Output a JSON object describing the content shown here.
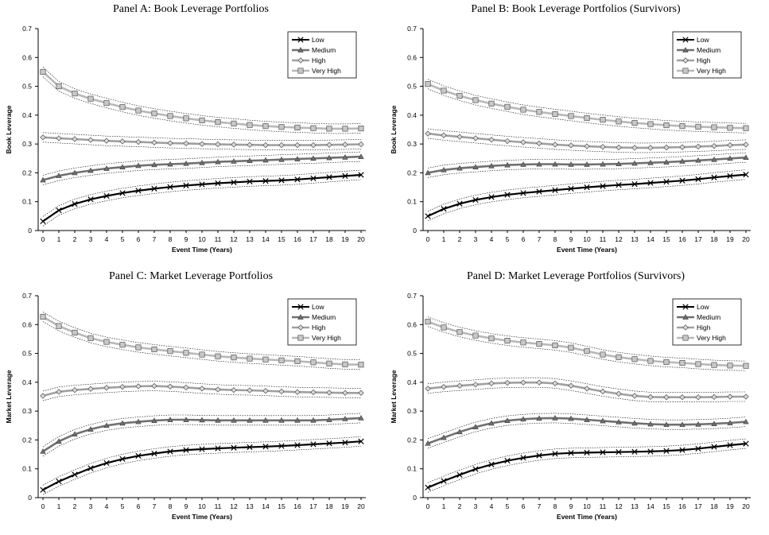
{
  "chart_data": [
    {
      "type": "line",
      "title": "Panel A: Book Leverage Portfolios",
      "xlabel": "Event Time (Years)",
      "ylabel": "Book Leverage",
      "ylim": [
        0,
        0.7
      ],
      "yticks": [
        "0",
        "0.1",
        "0.2",
        "0.3",
        "0.4",
        "0.5",
        "0.6",
        "0.7"
      ],
      "x": [
        0,
        1,
        2,
        3,
        4,
        5,
        6,
        7,
        8,
        9,
        10,
        11,
        12,
        13,
        14,
        15,
        16,
        17,
        18,
        19,
        20
      ],
      "legend_position": "top-right",
      "grid": false,
      "series": [
        {
          "name": "Low",
          "color": "#000000",
          "marker": "x",
          "values": [
            0.032,
            0.07,
            0.092,
            0.108,
            0.12,
            0.13,
            0.138,
            0.145,
            0.151,
            0.156,
            0.16,
            0.164,
            0.167,
            0.17,
            0.172,
            0.174,
            0.177,
            0.181,
            0.185,
            0.189,
            0.193
          ]
        },
        {
          "name": "Medium",
          "color": "#707070",
          "marker": "triangle",
          "values": [
            0.175,
            0.19,
            0.2,
            0.208,
            0.215,
            0.22,
            0.225,
            0.228,
            0.23,
            0.232,
            0.235,
            0.238,
            0.24,
            0.242,
            0.244,
            0.246,
            0.248,
            0.25,
            0.252,
            0.254,
            0.256
          ]
        },
        {
          "name": "High",
          "color": "#a0a0a0",
          "marker": "diamond",
          "values": [
            0.323,
            0.32,
            0.317,
            0.314,
            0.311,
            0.309,
            0.307,
            0.305,
            0.303,
            0.302,
            0.3,
            0.299,
            0.298,
            0.297,
            0.296,
            0.296,
            0.296,
            0.296,
            0.297,
            0.298,
            0.299
          ]
        },
        {
          "name": "Very High",
          "color": "#b8b8b8",
          "marker": "square",
          "values": [
            0.55,
            0.5,
            0.475,
            0.457,
            0.442,
            0.428,
            0.416,
            0.406,
            0.397,
            0.389,
            0.382,
            0.376,
            0.371,
            0.366,
            0.362,
            0.359,
            0.357,
            0.355,
            0.353,
            0.353,
            0.354
          ]
        }
      ]
    },
    {
      "type": "line",
      "title": "Panel B: Book Leverage Portfolios (Survivors)",
      "xlabel": "Event Time (Years)",
      "ylabel": "Book Leverage",
      "ylim": [
        0,
        0.7
      ],
      "yticks": [
        "0",
        "0.1",
        "0.2",
        "0.3",
        "0.4",
        "0.5",
        "0.6",
        "0.7"
      ],
      "x": [
        0,
        1,
        2,
        3,
        4,
        5,
        6,
        7,
        8,
        9,
        10,
        11,
        12,
        13,
        14,
        15,
        16,
        17,
        18,
        19,
        20
      ],
      "legend_position": "top-right",
      "grid": false,
      "series": [
        {
          "name": "Low",
          "color": "#000000",
          "marker": "x",
          "values": [
            0.05,
            0.075,
            0.093,
            0.106,
            0.116,
            0.124,
            0.13,
            0.135,
            0.14,
            0.145,
            0.15,
            0.154,
            0.158,
            0.161,
            0.165,
            0.169,
            0.173,
            0.178,
            0.184,
            0.189,
            0.194
          ]
        },
        {
          "name": "Medium",
          "color": "#707070",
          "marker": "triangle",
          "values": [
            0.2,
            0.21,
            0.216,
            0.22,
            0.224,
            0.227,
            0.229,
            0.23,
            0.23,
            0.229,
            0.229,
            0.23,
            0.231,
            0.233,
            0.235,
            0.237,
            0.24,
            0.243,
            0.246,
            0.25,
            0.253
          ]
        },
        {
          "name": "High",
          "color": "#a0a0a0",
          "marker": "diamond",
          "values": [
            0.336,
            0.33,
            0.325,
            0.32,
            0.315,
            0.31,
            0.306,
            0.302,
            0.298,
            0.295,
            0.292,
            0.29,
            0.288,
            0.287,
            0.287,
            0.288,
            0.289,
            0.291,
            0.293,
            0.296,
            0.298
          ]
        },
        {
          "name": "Very High",
          "color": "#b8b8b8",
          "marker": "square",
          "values": [
            0.508,
            0.485,
            0.467,
            0.452,
            0.44,
            0.429,
            0.419,
            0.411,
            0.404,
            0.397,
            0.39,
            0.384,
            0.378,
            0.373,
            0.369,
            0.365,
            0.362,
            0.36,
            0.358,
            0.356,
            0.355
          ]
        }
      ]
    },
    {
      "type": "line",
      "title": "Panel C: Market Leverage Portfolios",
      "xlabel": "Event Time (Years)",
      "ylabel": "Market Leverage",
      "ylim": [
        0,
        0.7
      ],
      "yticks": [
        "0",
        "0.1",
        "0.2",
        "0.3",
        "0.4",
        "0.5",
        "0.6",
        "0.7"
      ],
      "x": [
        0,
        1,
        2,
        3,
        4,
        5,
        6,
        7,
        8,
        9,
        10,
        11,
        12,
        13,
        14,
        15,
        16,
        17,
        18,
        19,
        20
      ],
      "legend_position": "top-right",
      "grid": false,
      "series": [
        {
          "name": "Low",
          "color": "#000000",
          "marker": "x",
          "values": [
            0.027,
            0.056,
            0.08,
            0.102,
            0.12,
            0.134,
            0.145,
            0.153,
            0.16,
            0.165,
            0.168,
            0.171,
            0.173,
            0.175,
            0.177,
            0.179,
            0.182,
            0.185,
            0.188,
            0.191,
            0.195
          ]
        },
        {
          "name": "Medium",
          "color": "#707070",
          "marker": "triangle",
          "values": [
            0.16,
            0.195,
            0.22,
            0.237,
            0.25,
            0.258,
            0.263,
            0.267,
            0.27,
            0.27,
            0.269,
            0.268,
            0.268,
            0.268,
            0.268,
            0.268,
            0.268,
            0.268,
            0.27,
            0.273,
            0.276
          ]
        },
        {
          "name": "High",
          "color": "#a0a0a0",
          "marker": "diamond",
          "values": [
            0.353,
            0.367,
            0.373,
            0.377,
            0.381,
            0.384,
            0.386,
            0.387,
            0.385,
            0.382,
            0.378,
            0.375,
            0.373,
            0.372,
            0.37,
            0.368,
            0.366,
            0.365,
            0.364,
            0.363,
            0.363
          ]
        },
        {
          "name": "Very High",
          "color": "#b8b8b8",
          "marker": "square",
          "values": [
            0.627,
            0.595,
            0.572,
            0.553,
            0.54,
            0.53,
            0.521,
            0.514,
            0.508,
            0.502,
            0.496,
            0.49,
            0.486,
            0.482,
            0.479,
            0.476,
            0.473,
            0.469,
            0.465,
            0.462,
            0.461
          ]
        }
      ]
    },
    {
      "type": "line",
      "title": "Panel D: Market Leverage Portfolios (Survivors)",
      "xlabel": "Event Time (Years)",
      "ylabel": "Market Leverage",
      "ylim": [
        0,
        0.7
      ],
      "yticks": [
        "0",
        "0.1",
        "0.2",
        "0.3",
        "0.4",
        "0.5",
        "0.6",
        "0.7"
      ],
      "x": [
        0,
        1,
        2,
        3,
        4,
        5,
        6,
        7,
        8,
        9,
        10,
        11,
        12,
        13,
        14,
        15,
        16,
        17,
        18,
        19,
        20
      ],
      "legend_position": "top-right",
      "grid": false,
      "series": [
        {
          "name": "Low",
          "color": "#000000",
          "marker": "x",
          "values": [
            0.035,
            0.058,
            0.079,
            0.099,
            0.115,
            0.128,
            0.138,
            0.146,
            0.152,
            0.155,
            0.156,
            0.157,
            0.158,
            0.159,
            0.16,
            0.162,
            0.165,
            0.17,
            0.176,
            0.182,
            0.187
          ]
        },
        {
          "name": "Medium",
          "color": "#707070",
          "marker": "triangle",
          "values": [
            0.188,
            0.208,
            0.228,
            0.245,
            0.258,
            0.267,
            0.272,
            0.275,
            0.276,
            0.274,
            0.27,
            0.266,
            0.262,
            0.258,
            0.255,
            0.253,
            0.253,
            0.254,
            0.256,
            0.259,
            0.263
          ]
        },
        {
          "name": "High",
          "color": "#a0a0a0",
          "marker": "diamond",
          "values": [
            0.378,
            0.384,
            0.388,
            0.392,
            0.396,
            0.398,
            0.399,
            0.399,
            0.396,
            0.388,
            0.378,
            0.368,
            0.36,
            0.353,
            0.349,
            0.348,
            0.348,
            0.348,
            0.349,
            0.35,
            0.35
          ]
        },
        {
          "name": "Very High",
          "color": "#b8b8b8",
          "marker": "square",
          "values": [
            0.61,
            0.59,
            0.574,
            0.562,
            0.552,
            0.544,
            0.538,
            0.533,
            0.528,
            0.52,
            0.508,
            0.496,
            0.487,
            0.48,
            0.474,
            0.47,
            0.467,
            0.463,
            0.46,
            0.458,
            0.457
          ]
        }
      ]
    }
  ]
}
